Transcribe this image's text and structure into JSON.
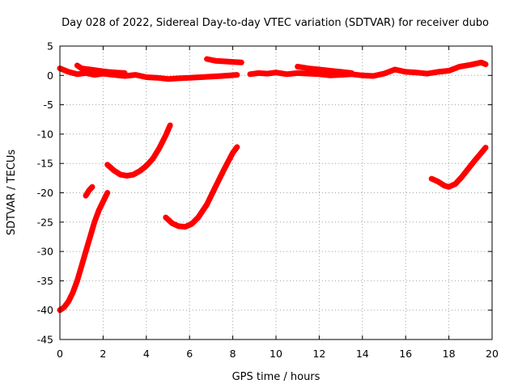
{
  "chart_data": {
    "type": "line",
    "title": "Day 028 of 2022, Sidereal Day-to-day VTEC variation (SDTVAR) for receiver dubo",
    "xlabel": "GPS time / hours",
    "ylabel": "SDTVAR / TECUs",
    "xlim": [
      0,
      20
    ],
    "ylim": [
      -45,
      5
    ],
    "xticks": [
      0,
      2,
      4,
      6,
      8,
      10,
      12,
      14,
      16,
      18,
      20
    ],
    "yticks": [
      -45,
      -40,
      -35,
      -30,
      -25,
      -20,
      -15,
      -10,
      -5,
      0,
      5
    ],
    "grid": true,
    "series_color": "#ff0000",
    "series": [
      {
        "name": "near-zero band",
        "points": [
          [
            0,
            1.2
          ],
          [
            0.4,
            0.6
          ],
          [
            0.8,
            0.2
          ],
          [
            1.2,
            0.4
          ],
          [
            1.6,
            0.1
          ],
          [
            2,
            0.3
          ],
          [
            2.5,
            0.1
          ],
          [
            3,
            -0.1
          ],
          [
            3.5,
            0.1
          ],
          [
            4,
            -0.3
          ],
          [
            4.5,
            -0.4
          ],
          [
            5,
            -0.6
          ],
          [
            5.5,
            -0.5
          ],
          [
            6,
            -0.4
          ],
          [
            6.5,
            -0.3
          ],
          [
            7,
            -0.2
          ],
          [
            7.5,
            -0.1
          ],
          [
            8.2,
            0.1
          ]
        ]
      },
      {
        "name": "near-zero band upper",
        "points": [
          [
            0.8,
            1.7
          ],
          [
            1.0,
            1.2
          ],
          [
            1.4,
            1.0
          ],
          [
            1.8,
            0.8
          ],
          [
            2.2,
            0.6
          ],
          [
            2.6,
            0.5
          ],
          [
            3.0,
            0.4
          ]
        ]
      },
      {
        "name": "segment near 7-8.2h",
        "points": [
          [
            6.8,
            2.8
          ],
          [
            7.2,
            2.5
          ],
          [
            7.6,
            2.4
          ],
          [
            8.0,
            2.3
          ],
          [
            8.4,
            2.2
          ]
        ]
      },
      {
        "name": "near-zero band mid",
        "points": [
          [
            8.8,
            0.2
          ],
          [
            9.2,
            0.4
          ],
          [
            9.6,
            0.3
          ],
          [
            10,
            0.5
          ],
          [
            10.5,
            0.2
          ],
          [
            11,
            0.4
          ],
          [
            11.5,
            0.3
          ],
          [
            12,
            0.2
          ],
          [
            12.5,
            0
          ],
          [
            13,
            0.1
          ],
          [
            13.5,
            0.2
          ],
          [
            14,
            0
          ],
          [
            14.5,
            -0.1
          ],
          [
            15,
            0.3
          ],
          [
            15.5,
            1.0
          ],
          [
            16,
            0.6
          ],
          [
            16.5,
            0.5
          ],
          [
            17,
            0.3
          ],
          [
            17.5,
            0.6
          ],
          [
            18,
            0.8
          ],
          [
            18.5,
            1.5
          ],
          [
            19,
            1.8
          ],
          [
            19.5,
            2.2
          ],
          [
            19.7,
            1.9
          ]
        ]
      },
      {
        "name": "near-zero band mid upper",
        "points": [
          [
            11,
            1.5
          ],
          [
            11.5,
            1.2
          ],
          [
            12,
            1.0
          ],
          [
            12.5,
            0.8
          ],
          [
            13,
            0.6
          ],
          [
            13.5,
            0.4
          ]
        ]
      },
      {
        "name": "arc 0-2.3h",
        "points": [
          [
            0,
            -40
          ],
          [
            0.2,
            -39.5
          ],
          [
            0.4,
            -38.5
          ],
          [
            0.6,
            -37
          ],
          [
            0.8,
            -35
          ],
          [
            1.0,
            -32.5
          ],
          [
            1.2,
            -30
          ],
          [
            1.4,
            -27.5
          ],
          [
            1.6,
            -25
          ],
          [
            1.8,
            -23
          ],
          [
            2.0,
            -21.5
          ],
          [
            2.2,
            -20
          ]
        ]
      },
      {
        "name": "short segment near 1.2h",
        "points": [
          [
            1.2,
            -20.5
          ],
          [
            1.35,
            -19.6
          ],
          [
            1.5,
            -19
          ]
        ]
      },
      {
        "name": "arc 2.1-5.1h",
        "points": [
          [
            2.2,
            -15.2
          ],
          [
            2.5,
            -16.2
          ],
          [
            2.8,
            -16.9
          ],
          [
            3.1,
            -17.1
          ],
          [
            3.4,
            -16.9
          ],
          [
            3.7,
            -16.3
          ],
          [
            4.0,
            -15.4
          ],
          [
            4.3,
            -14.2
          ],
          [
            4.6,
            -12.4
          ],
          [
            4.9,
            -10.2
          ],
          [
            5.1,
            -8.5
          ]
        ]
      },
      {
        "name": "arc 4.8-8.2h",
        "points": [
          [
            4.9,
            -24.2
          ],
          [
            5.2,
            -25.2
          ],
          [
            5.5,
            -25.7
          ],
          [
            5.8,
            -25.8
          ],
          [
            6.1,
            -25.3
          ],
          [
            6.4,
            -24.2
          ],
          [
            6.8,
            -22.0
          ],
          [
            7.2,
            -19.0
          ],
          [
            7.6,
            -16.0
          ],
          [
            8.0,
            -13.2
          ],
          [
            8.2,
            -12.2
          ]
        ]
      },
      {
        "name": "arc 17.2-19.7h",
        "points": [
          [
            17.2,
            -17.6
          ],
          [
            17.5,
            -18.1
          ],
          [
            17.8,
            -18.8
          ],
          [
            18.0,
            -19.0
          ],
          [
            18.3,
            -18.5
          ],
          [
            18.6,
            -17.3
          ],
          [
            18.9,
            -15.9
          ],
          [
            19.2,
            -14.5
          ],
          [
            19.5,
            -13.2
          ],
          [
            19.7,
            -12.3
          ]
        ]
      }
    ]
  }
}
